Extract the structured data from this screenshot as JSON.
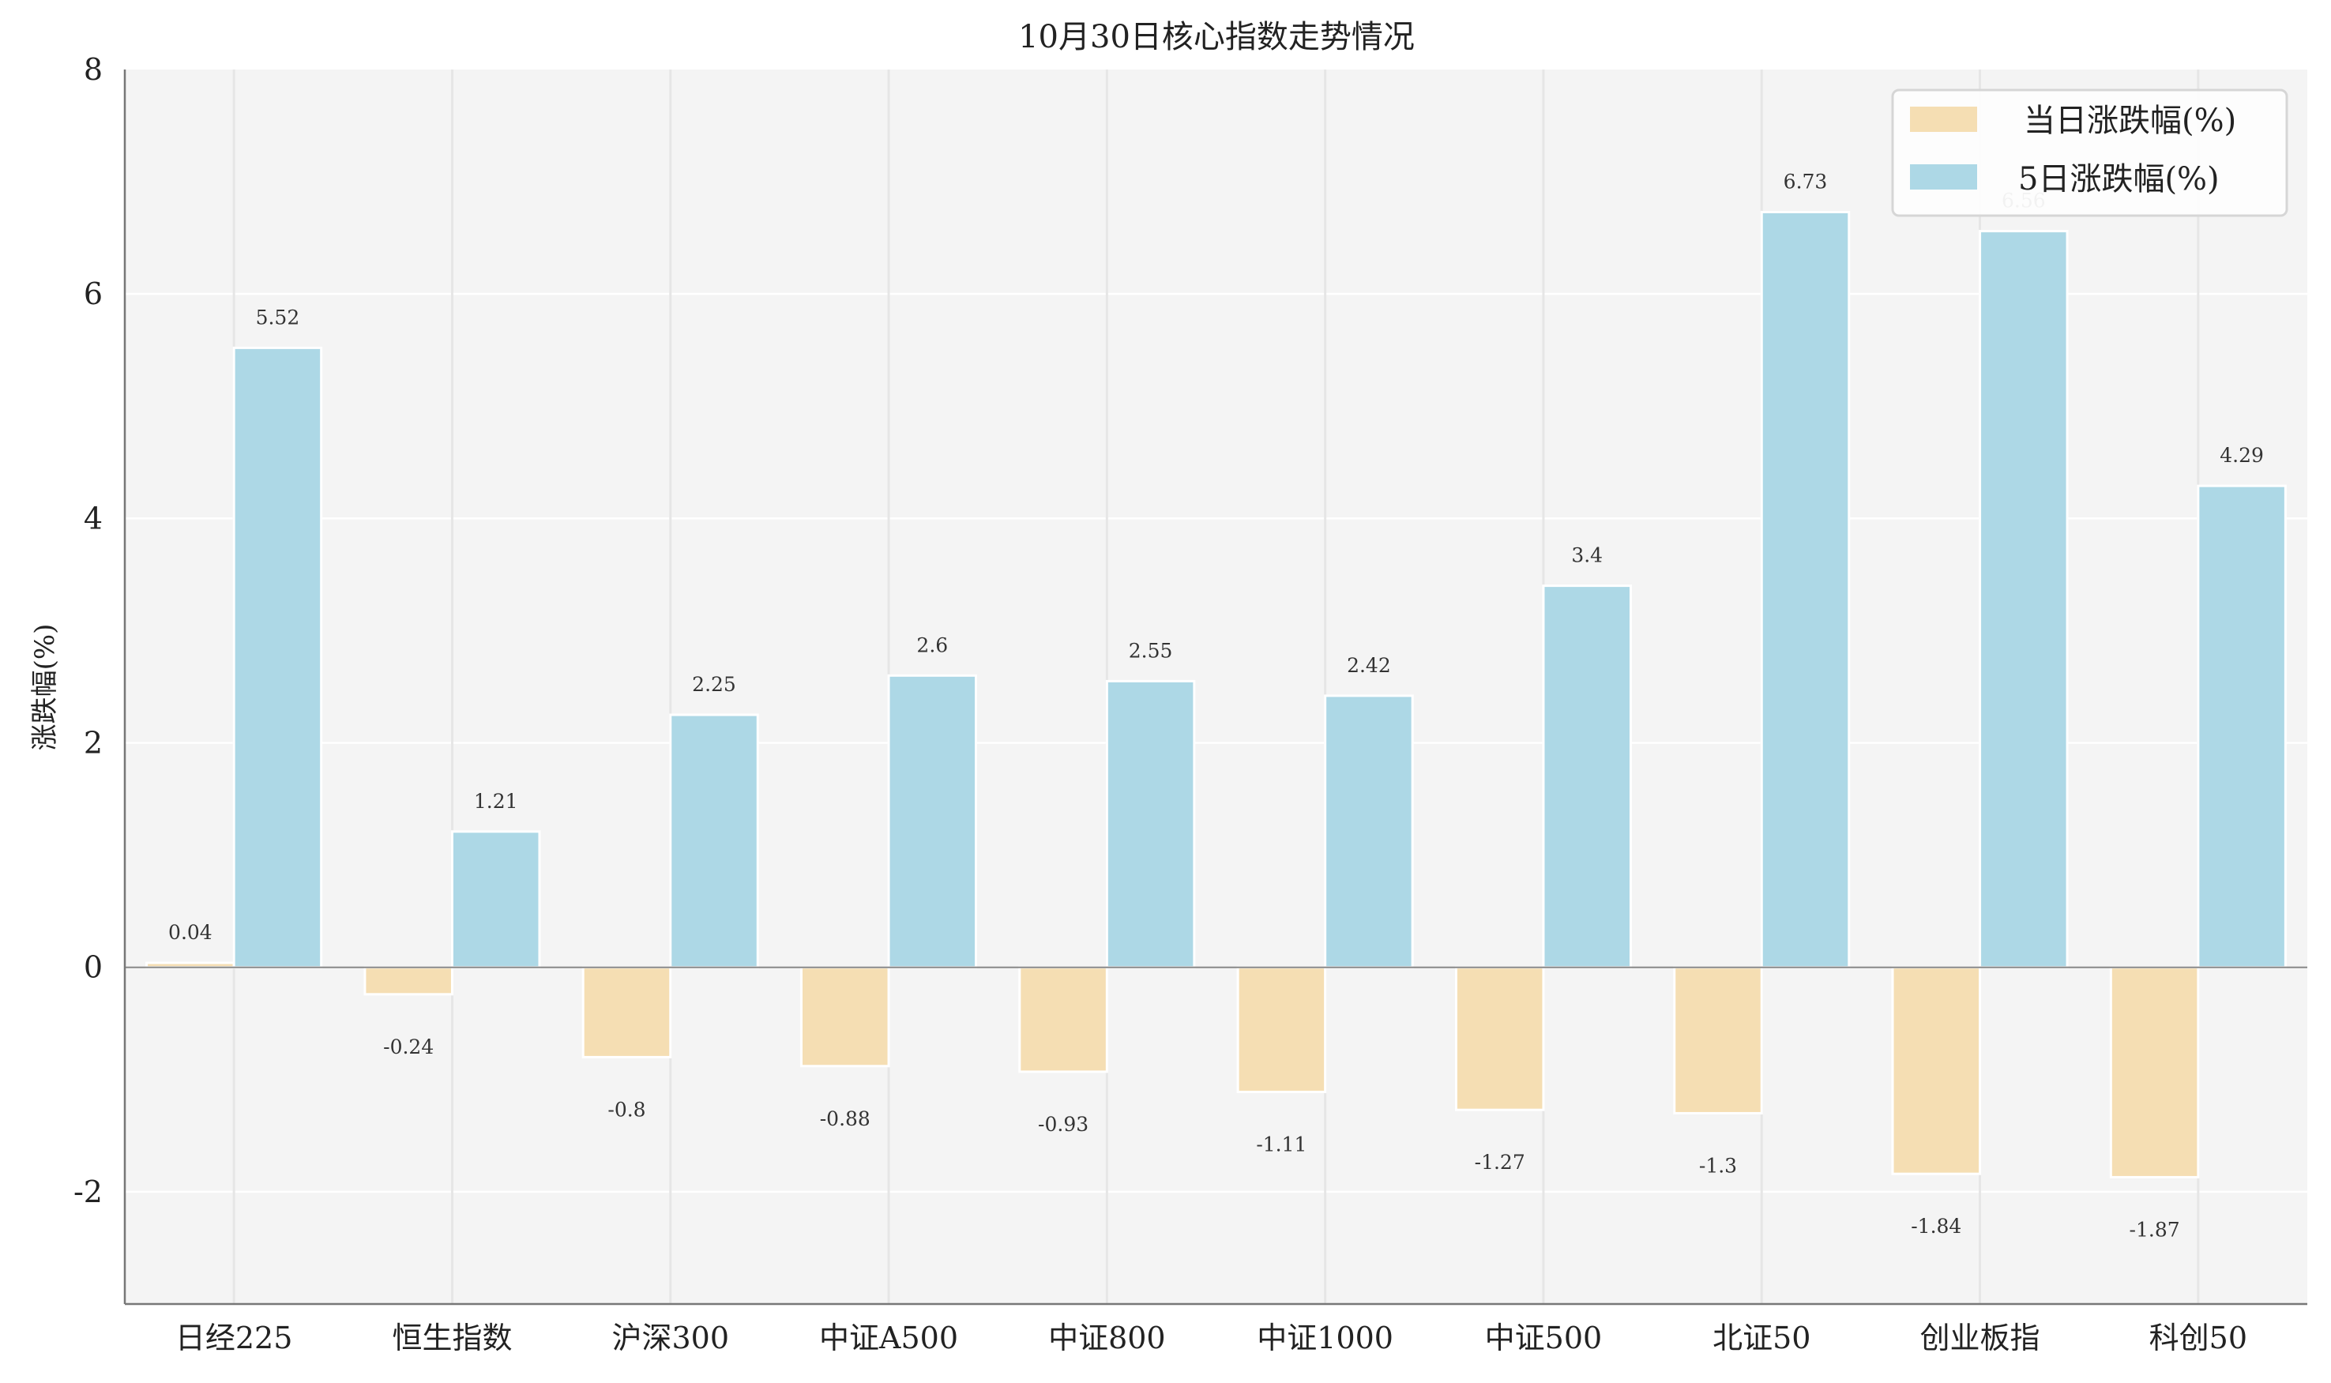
{
  "chart_data": {
    "type": "bar",
    "title": "10月30日核心指数走势情况",
    "xlabel": "",
    "ylabel": "涨跌幅(%)",
    "ylim": [
      -3,
      8
    ],
    "yticks": [
      -2,
      0,
      2,
      4,
      6,
      8
    ],
    "grid": true,
    "legend_position": "top-right",
    "categories": [
      "日经225",
      "恒生指数",
      "沪深300",
      "中证A500",
      "中证800",
      "中证1000",
      "中证500",
      "北证50",
      "创业板指",
      "科创50"
    ],
    "series": [
      {
        "name": "当日涨跌幅(%)",
        "color": "#f5deb3",
        "values": [
          0.04,
          -0.24,
          -0.8,
          -0.88,
          -0.93,
          -1.11,
          -1.27,
          -1.3,
          -1.84,
          -1.87
        ]
      },
      {
        "name": "5日涨跌幅(%)",
        "color": "#add8e6",
        "values": [
          5.52,
          1.21,
          2.25,
          2.6,
          2.55,
          2.42,
          3.4,
          6.73,
          6.56,
          4.29
        ]
      }
    ]
  }
}
